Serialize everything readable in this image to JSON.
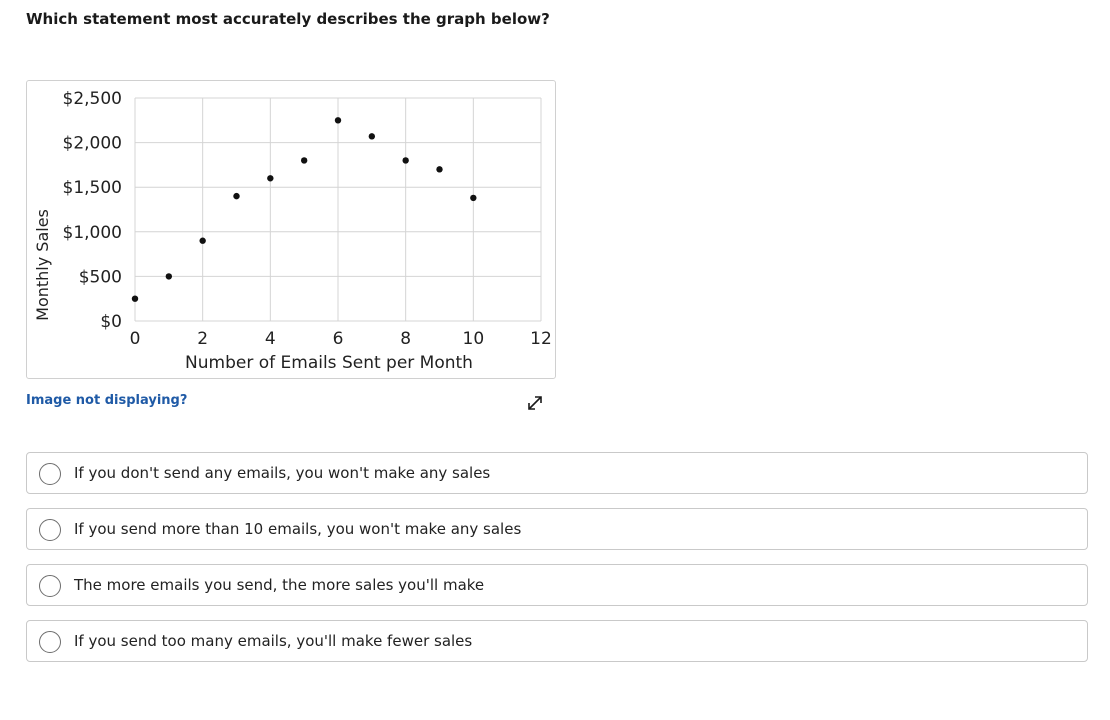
{
  "question": {
    "text": "Which statement most accurately describes the graph below?"
  },
  "chart_data": {
    "type": "scatter",
    "xlabel": "Number of Emails Sent per Month",
    "ylabel": "Monthly Sales",
    "x_ticks": [
      "0",
      "2",
      "4",
      "6",
      "8",
      "10",
      "12"
    ],
    "y_ticks": [
      "$0",
      "$500",
      "$1,000",
      "$1,500",
      "$2,000",
      "$2,500"
    ],
    "xlim": [
      0,
      12
    ],
    "ylim": [
      0,
      2500
    ],
    "grid": true,
    "points": [
      {
        "x": 0,
        "y": 250
      },
      {
        "x": 1,
        "y": 500
      },
      {
        "x": 2,
        "y": 900
      },
      {
        "x": 3,
        "y": 1400
      },
      {
        "x": 4,
        "y": 1600
      },
      {
        "x": 5,
        "y": 1800
      },
      {
        "x": 6,
        "y": 2250
      },
      {
        "x": 7,
        "y": 2070
      },
      {
        "x": 8,
        "y": 1800
      },
      {
        "x": 9,
        "y": 1700
      },
      {
        "x": 10,
        "y": 1380
      }
    ],
    "point_color": "#111111"
  },
  "image_help": {
    "label": "Image not displaying?"
  },
  "expand": {
    "icon": "expand-arrows-icon"
  },
  "options": [
    {
      "label": "If you don't send any emails, you won't make any sales"
    },
    {
      "label": "If you send more than 10 emails, you won't make any sales"
    },
    {
      "label": "The more emails you send, the more sales you'll make"
    },
    {
      "label": "If you send too many emails, you'll make fewer sales"
    }
  ],
  "colors": {
    "link": "#1f5aa6",
    "border": "#c9c9c9",
    "grid": "#d4d4d4"
  }
}
